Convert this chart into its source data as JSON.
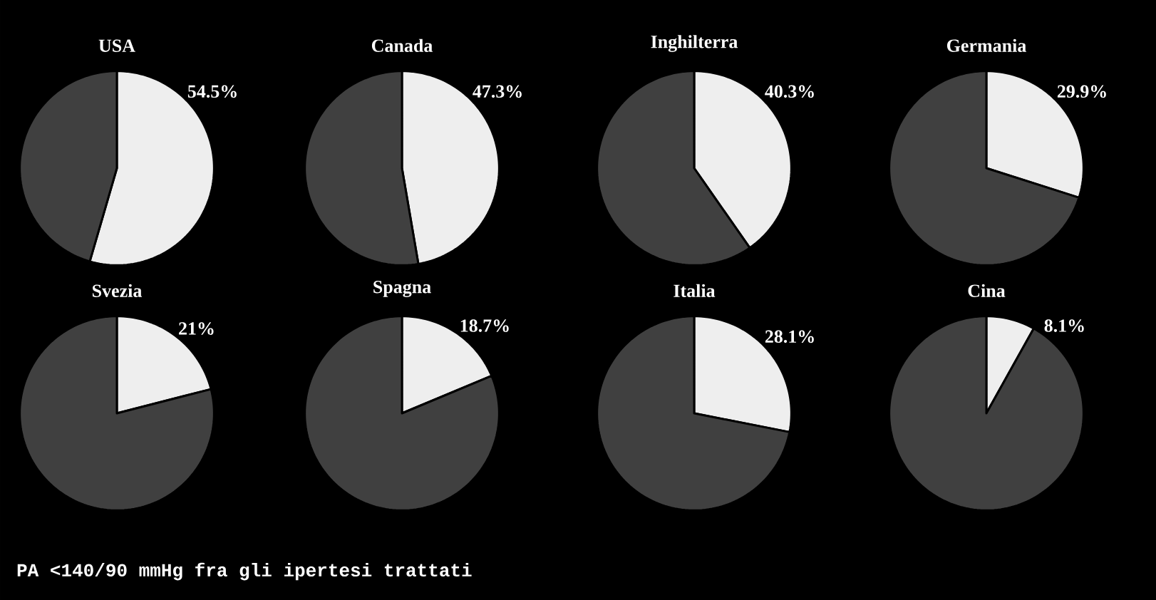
{
  "chart_data": [
    {
      "type": "pie",
      "title": "USA",
      "categories": [
        null,
        null
      ],
      "values": [
        54.5,
        45.5
      ],
      "colors": [
        "#eeeeee",
        "#404040"
      ],
      "value_labels": [
        "54.5%",
        null
      ],
      "annotations": [
        "PA <140/90 mmHg fra gli ipertesi trattati"
      ]
    },
    {
      "type": "pie",
      "title": "Canada",
      "categories": [
        null,
        null
      ],
      "values": [
        47.3,
        52.7
      ],
      "colors": [
        "#eeeeee",
        "#404040"
      ],
      "value_labels": [
        "47.3%",
        null
      ]
    },
    {
      "type": "pie",
      "title": "Inghilterra",
      "categories": [
        null,
        null
      ],
      "values": [
        40.3,
        59.7
      ],
      "colors": [
        "#eeeeee",
        "#404040"
      ],
      "value_labels": [
        "40.3%",
        null
      ]
    },
    {
      "type": "pie",
      "title": "Germania",
      "categories": [
        null,
        null
      ],
      "values": [
        29.9,
        70.1
      ],
      "colors": [
        "#eeeeee",
        "#404040"
      ],
      "value_labels": [
        "29.9%",
        null
      ]
    },
    {
      "type": "pie",
      "title": "Svezia",
      "categories": [
        null,
        null
      ],
      "values": [
        21,
        79
      ],
      "colors": [
        "#eeeeee",
        "#404040"
      ],
      "value_labels": [
        "21%",
        null
      ]
    },
    {
      "type": "pie",
      "title": "Spagna",
      "categories": [
        null,
        null
      ],
      "values": [
        18.7,
        81.3
      ],
      "colors": [
        "#eeeeee",
        "#404040"
      ],
      "value_labels": [
        "18.7%",
        null
      ]
    },
    {
      "type": "pie",
      "title": "Italia",
      "categories": [
        null,
        null
      ],
      "values": [
        28.1,
        71.9
      ],
      "colors": [
        "#eeeeee",
        "#404040"
      ],
      "value_labels": [
        "28.1%",
        null
      ]
    },
    {
      "type": "pie",
      "title": "Cina",
      "categories": [
        null,
        null
      ],
      "values": [
        8.1,
        91.9
      ],
      "colors": [
        "#eeeeee",
        "#404040"
      ],
      "value_labels": [
        "8.1%",
        null
      ]
    }
  ]
}
